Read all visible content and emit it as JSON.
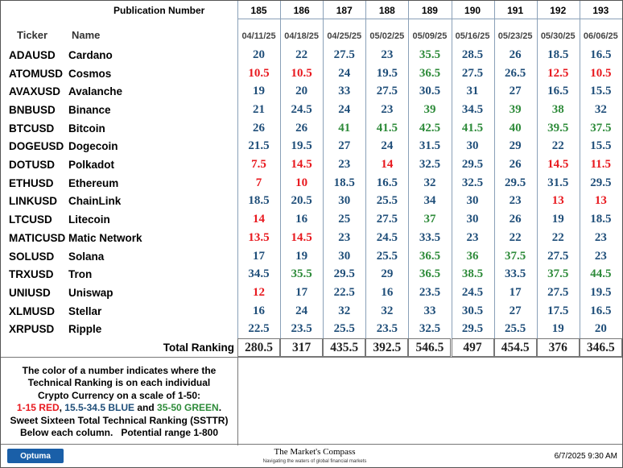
{
  "header": {
    "publication_label": "Publication Number",
    "publication_numbers": [
      185,
      186,
      187,
      188,
      189,
      190,
      191,
      192,
      193
    ],
    "ticker_label": "Ticker",
    "name_label": "Name",
    "dates": [
      "04/11/25",
      "04/18/25",
      "04/25/25",
      "05/02/25",
      "05/09/25",
      "05/16/25",
      "05/23/25",
      "05/30/25",
      "06/06/25"
    ]
  },
  "table": {
    "rows": [
      {
        "ticker": "ADAUSD",
        "name": "Cardano",
        "values": [
          20,
          22,
          27.5,
          23,
          35.5,
          28.5,
          26,
          18.5,
          16.5
        ]
      },
      {
        "ticker": "ATOMUSD",
        "name": "Cosmos",
        "values": [
          10.5,
          10.5,
          24,
          19.5,
          36.5,
          27.5,
          26.5,
          12.5,
          10.5
        ]
      },
      {
        "ticker": "AVAXUSD",
        "name": "Avalanche",
        "values": [
          19,
          20,
          33,
          27.5,
          30.5,
          31,
          27,
          16.5,
          15.5
        ]
      },
      {
        "ticker": "BNBUSD",
        "name": "Binance",
        "values": [
          21,
          24.5,
          24,
          23,
          39,
          34.5,
          39,
          38,
          32
        ]
      },
      {
        "ticker": "BTCUSD",
        "name": "Bitcoin",
        "values": [
          26,
          26,
          41,
          41.5,
          42.5,
          41.5,
          40,
          39.5,
          37.5
        ]
      },
      {
        "ticker": "DOGEUSD",
        "name": "Dogecoin",
        "values": [
          21.5,
          19.5,
          27,
          24,
          31.5,
          30,
          29,
          22,
          15.5
        ]
      },
      {
        "ticker": "DOTUSD",
        "name": "Polkadot",
        "values": [
          7.5,
          14.5,
          23,
          14,
          32.5,
          29.5,
          26,
          14.5,
          11.5
        ]
      },
      {
        "ticker": "ETHUSD",
        "name": "Ethereum",
        "values": [
          7,
          10,
          18.5,
          16.5,
          32,
          32.5,
          29.5,
          31.5,
          29.5
        ]
      },
      {
        "ticker": "LINKUSD",
        "name": "ChainLink",
        "values": [
          18.5,
          20.5,
          30,
          25.5,
          34,
          30,
          23,
          13,
          13
        ]
      },
      {
        "ticker": "LTCUSD",
        "name": "Litecoin",
        "values": [
          14,
          16,
          25,
          27.5,
          37,
          30,
          26,
          19,
          18.5
        ]
      },
      {
        "ticker": "MATICUSD",
        "name": "Matic Network",
        "values": [
          13.5,
          14.5,
          23,
          24.5,
          33.5,
          23,
          22,
          22,
          23
        ]
      },
      {
        "ticker": "SOLUSD",
        "name": "Solana",
        "values": [
          17,
          19,
          30,
          25.5,
          36.5,
          36,
          37.5,
          27.5,
          23
        ]
      },
      {
        "ticker": "TRXUSD",
        "name": "Tron",
        "values": [
          34.5,
          35.5,
          29.5,
          29,
          36.5,
          38.5,
          33.5,
          37.5,
          44.5
        ]
      },
      {
        "ticker": "UNIUSD",
        "name": "Uniswap",
        "values": [
          12,
          17,
          22.5,
          16,
          23.5,
          24.5,
          17,
          27.5,
          19.5
        ]
      },
      {
        "ticker": "XLMUSD",
        "name": "Stellar",
        "values": [
          16,
          24,
          32,
          32,
          33,
          30.5,
          27,
          17.5,
          16.5
        ]
      },
      {
        "ticker": "XRPUSD",
        "name": "Ripple",
        "values": [
          22.5,
          23.5,
          25.5,
          23.5,
          32.5,
          29.5,
          25.5,
          19,
          20
        ]
      }
    ],
    "total_label": "Total Ranking",
    "totals": [
      280.5,
      317,
      435.5,
      392.5,
      546.5,
      497,
      454.5,
      376,
      346.5
    ]
  },
  "color_scale": [
    {
      "max": 15,
      "color": "#e8191f"
    },
    {
      "max": 34.5,
      "color": "#1f4e79"
    },
    {
      "max": 50,
      "color": "#2e8b3a"
    }
  ],
  "footnote": {
    "lines": [
      "The color of a number indicates where the",
      "Technical Ranking is on each individual",
      "Crypto Currency on a scale of 1-50:"
    ],
    "scale_parts": [
      "1-15 RED",
      ", ",
      "15.5-34.5 BLUE",
      " and ",
      "35-50 GREEN",
      "."
    ],
    "lines_after": [
      "Sweet Sixteen Total Technical Ranking (SSTTR)",
      "Below each column.   Potential range 1-800"
    ]
  },
  "footer": {
    "logo": "Optuma",
    "brand": "The Market's Compass",
    "tagline": "Navigating the waters of global financial markets",
    "timestamp": "6/7/2025 9:30 AM"
  }
}
